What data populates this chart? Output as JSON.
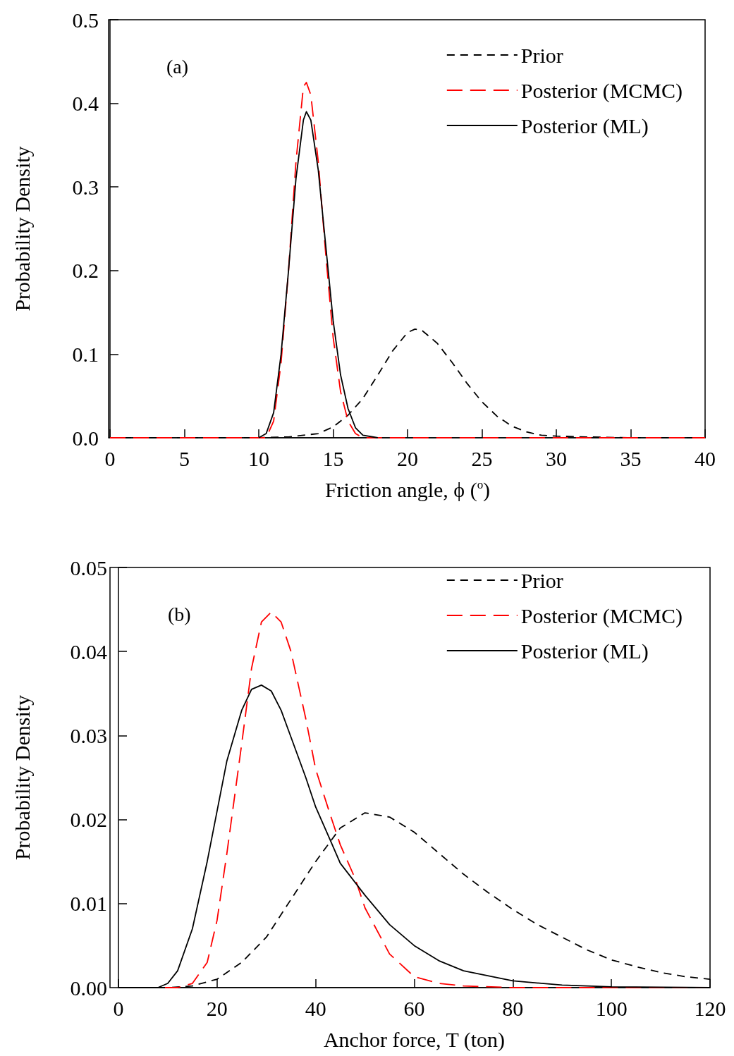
{
  "chart_data": [
    {
      "type": "line",
      "xlabel": "Friction angle, ϕ ($^{o}$)",
      "ylabel": "Probability Density",
      "annotations": [
        "(a)"
      ],
      "xlim": [
        0,
        40
      ],
      "xticks": [
        0,
        5,
        10,
        15,
        20,
        25,
        30,
        35,
        40
      ],
      "ylim": [
        0,
        0.5
      ],
      "yticks": [
        {
          "value": 0,
          "label": "0.0"
        },
        0.1,
        0.2,
        0.3,
        0.4,
        0.5
      ],
      "legend": "top right",
      "grid": false,
      "marker": "none",
      "series": [
        {
          "name": "Prior",
          "color": "#000000",
          "line_style": "dashed",
          "x": [
            0,
            10,
            12,
            14,
            15,
            16,
            17,
            18,
            19,
            20,
            20.5,
            21,
            22,
            23,
            24,
            25,
            26,
            27,
            28,
            29,
            30,
            32,
            35,
            40
          ],
          "values": [
            0,
            0,
            0.001,
            0.005,
            0.013,
            0.027,
            0.047,
            0.075,
            0.104,
            0.126,
            0.13,
            0.128,
            0.113,
            0.09,
            0.065,
            0.043,
            0.026,
            0.014,
            0.007,
            0.003,
            0.002,
            0.001,
            0,
            0
          ]
        },
        {
          "name": "Posterior (MCMC)",
          "color": "#ff0000",
          "line_style": "dashed",
          "x": [
            0,
            10.5,
            11,
            11.5,
            12,
            12.5,
            13,
            13.2,
            13.5,
            14,
            14.5,
            15,
            15.5,
            16,
            16.5,
            17,
            40
          ],
          "values": [
            0,
            0,
            0.02,
            0.09,
            0.2,
            0.33,
            0.42,
            0.425,
            0.41,
            0.33,
            0.22,
            0.12,
            0.055,
            0.02,
            0.005,
            0,
            0
          ]
        },
        {
          "name": "Posterior (ML)",
          "color": "#000000",
          "line_style": "solid",
          "x": [
            10,
            10.5,
            11,
            11.5,
            12,
            12.5,
            13,
            13.2,
            13.5,
            14,
            14.5,
            15,
            15.5,
            16,
            16.5,
            17,
            18
          ],
          "values": [
            0,
            0.005,
            0.03,
            0.1,
            0.2,
            0.31,
            0.38,
            0.39,
            0.38,
            0.32,
            0.23,
            0.14,
            0.075,
            0.035,
            0.012,
            0.003,
            0
          ]
        }
      ]
    },
    {
      "type": "line",
      "xlabel": "Anchor force, T (ton)",
      "ylabel": "Probability Density",
      "annotations": [
        "(b)"
      ],
      "xlim": [
        0,
        120
      ],
      "xticks": [
        0,
        20,
        40,
        60,
        80,
        100,
        120
      ],
      "ylim": [
        0,
        0.05
      ],
      "yticks": [
        {
          "value": 0,
          "label": "0.00"
        },
        0.01,
        0.02,
        0.03,
        0.04,
        0.05
      ],
      "legend": "top right",
      "grid": false,
      "marker": "none",
      "series": [
        {
          "name": "Prior",
          "color": "#000000",
          "line_style": "dashed",
          "x": [
            0,
            10,
            15,
            20,
            25,
            30,
            35,
            40,
            45,
            50,
            55,
            60,
            65,
            70,
            75,
            80,
            85,
            90,
            95,
            100,
            105,
            110,
            115,
            120
          ],
          "values": [
            0,
            0,
            0.0002,
            0.001,
            0.003,
            0.006,
            0.0105,
            0.015,
            0.019,
            0.0208,
            0.0203,
            0.0185,
            0.016,
            0.0135,
            0.0113,
            0.0093,
            0.0075,
            0.006,
            0.0045,
            0.0033,
            0.0025,
            0.0018,
            0.0013,
            0.001
          ]
        },
        {
          "name": "Posterior (MCMC)",
          "color": "#ff0000",
          "line_style": "dashed",
          "x": [
            0,
            12,
            15,
            18,
            20,
            22,
            25,
            27,
            29,
            31,
            33,
            35,
            38,
            40,
            43,
            45,
            48,
            50,
            55,
            60,
            65,
            70,
            80,
            120
          ],
          "values": [
            0,
            0,
            0.0005,
            0.003,
            0.008,
            0.016,
            0.029,
            0.038,
            0.0435,
            0.0447,
            0.0435,
            0.04,
            0.032,
            0.026,
            0.0205,
            0.017,
            0.013,
            0.0095,
            0.004,
            0.0013,
            0.0005,
            0.0002,
            0,
            0
          ]
        },
        {
          "name": "Posterior (ML)",
          "color": "#000000",
          "line_style": "solid",
          "x": [
            0,
            8,
            10,
            12,
            15,
            18,
            20,
            22,
            25,
            27,
            29,
            31,
            33,
            35,
            38,
            40,
            43,
            45,
            50,
            55,
            60,
            65,
            70,
            80,
            90,
            100,
            120
          ],
          "values": [
            0,
            0,
            0.0005,
            0.002,
            0.007,
            0.015,
            0.021,
            0.027,
            0.033,
            0.0355,
            0.036,
            0.0353,
            0.033,
            0.0298,
            0.025,
            0.0215,
            0.0175,
            0.0148,
            0.011,
            0.0075,
            0.005,
            0.0032,
            0.002,
            0.0008,
            0.0003,
            0.0001,
            0
          ]
        }
      ]
    }
  ]
}
